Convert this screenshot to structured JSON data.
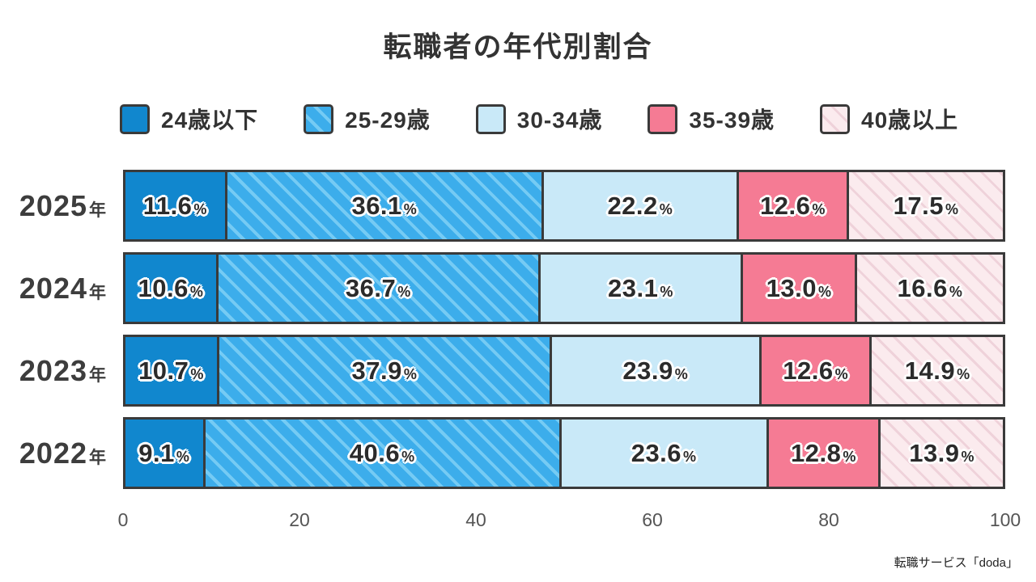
{
  "title": "転職者の年代別割合",
  "source": "転職サービス「doda」",
  "legend": [
    {
      "label": "24歳以下",
      "style": "solid-blue",
      "swatch_icon": "solid-blue-swatch-icon"
    },
    {
      "label": "25-29歳",
      "style": "striped-blue",
      "swatch_icon": "striped-blue-swatch-icon"
    },
    {
      "label": "30-34歳",
      "style": "solid-lightblue",
      "swatch_icon": "light-blue-swatch-icon"
    },
    {
      "label": "35-39歳",
      "style": "solid-pink",
      "swatch_icon": "pink-swatch-icon"
    },
    {
      "label": "40歳以上",
      "style": "striped-pink",
      "swatch_icon": "striped-pink-swatch-icon"
    }
  ],
  "colors": {
    "solid_blue": "#1187ce",
    "striped_blue_base": "#3cadeb",
    "striped_blue_stripe": "#75cbf4",
    "solid_lightblue": "#c9e9f8",
    "solid_pink": "#f57b94",
    "striped_pink_base": "#fbebee",
    "striped_pink_stripe": "#efd2da",
    "segment_border": "#3a3a3a",
    "label_text": "#2b2b2b"
  },
  "chart_data": {
    "type": "bar",
    "orientation": "horizontal-stacked",
    "title": "転職者の年代別割合",
    "categories": [
      "2025",
      "2024",
      "2023",
      "2022"
    ],
    "category_suffix": "年",
    "series": [
      {
        "name": "24歳以下",
        "style": "solid-blue",
        "values": [
          11.6,
          10.6,
          10.7,
          9.1
        ]
      },
      {
        "name": "25-29歳",
        "style": "striped-blue",
        "values": [
          36.1,
          36.7,
          37.9,
          40.6
        ]
      },
      {
        "name": "30-34歳",
        "style": "solid-lightblue",
        "values": [
          22.2,
          23.1,
          23.9,
          23.6
        ]
      },
      {
        "name": "35-39歳",
        "style": "solid-pink",
        "values": [
          12.6,
          13.0,
          12.6,
          12.8
        ]
      },
      {
        "name": "40歳以上",
        "style": "striped-pink",
        "values": [
          17.5,
          16.6,
          14.9,
          13.9
        ]
      }
    ],
    "xlim": [
      0,
      100
    ],
    "x_ticks": [
      0,
      20,
      40,
      60,
      80,
      100
    ],
    "value_suffix": "%",
    "grid": false,
    "legend_position": "top"
  }
}
